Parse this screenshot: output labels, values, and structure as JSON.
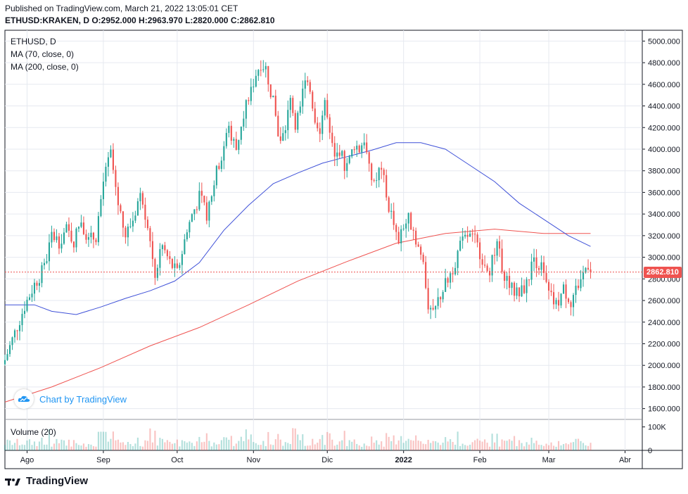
{
  "header": {
    "published": "Published on TradingView.com, March 21, 2022 13:05:01 CET",
    "symbol": "ETHUSD:KRAKEN, D",
    "ohlc": "O:2952.000 H:2963.970 L:2820.000 C:2862.810"
  },
  "legend": {
    "symbol": "ETHUSD, D",
    "ma70": "MA (70, close, 0)",
    "ma200": "MA (200, close, 0)",
    "volume": "Volume (20)"
  },
  "attribution": "Chart by TradingView",
  "footer_brand": "TradingView",
  "last_price_label": "2862.810",
  "colors": {
    "up": "#26a69a",
    "down": "#ef5350",
    "ma70": "#3f51d8",
    "ma200": "#ef5350",
    "grid": "#e6e9f0",
    "accent": "#2196f3"
  },
  "chart_data": {
    "type": "candlestick",
    "ylim": [
      1500,
      5100
    ],
    "y_ticks": [
      "1600.000",
      "1800.000",
      "2000.000",
      "2200.000",
      "2400.000",
      "2600.000",
      "2800.000",
      "3000.000",
      "3200.000",
      "3400.000",
      "3600.000",
      "3800.000",
      "4000.000",
      "4200.000",
      "4400.000",
      "4600.000",
      "4800.000",
      "5000.000"
    ],
    "x_ticks": [
      {
        "label": "Ago",
        "day": 0
      },
      {
        "label": "Sep",
        "day": 31
      },
      {
        "label": "Oct",
        "day": 61
      },
      {
        "label": "Nov",
        "day": 92
      },
      {
        "label": "Dic",
        "day": 122
      },
      {
        "label": "2022",
        "day": 153
      },
      {
        "label": "Feb",
        "day": 184
      },
      {
        "label": "Mar",
        "day": 212
      },
      {
        "label": "Abr",
        "day": 243
      }
    ],
    "volume_ticks": [
      "100K",
      "0"
    ],
    "volume_max": 120000,
    "x_range_days": [
      -9,
      250
    ],
    "last_close": 2862.81,
    "anchors": [
      [
        -9,
        2050
      ],
      [
        -5,
        2300
      ],
      [
        -1,
        2550
      ],
      [
        3,
        2750
      ],
      [
        7,
        2900
      ],
      [
        10,
        3200
      ],
      [
        13,
        3150
      ],
      [
        16,
        3250
      ],
      [
        19,
        3150
      ],
      [
        22,
        3350
      ],
      [
        25,
        3150
      ],
      [
        28,
        3200
      ],
      [
        31,
        3700
      ],
      [
        34,
        3950
      ],
      [
        37,
        3500
      ],
      [
        40,
        3200
      ],
      [
        43,
        3350
      ],
      [
        46,
        3600
      ],
      [
        49,
        3300
      ],
      [
        52,
        2850
      ],
      [
        55,
        3100
      ],
      [
        58,
        2950
      ],
      [
        61,
        2850
      ],
      [
        64,
        3150
      ],
      [
        67,
        3400
      ],
      [
        70,
        3550
      ],
      [
        73,
        3400
      ],
      [
        76,
        3700
      ],
      [
        79,
        3950
      ],
      [
        82,
        4200
      ],
      [
        85,
        4000
      ],
      [
        88,
        4350
      ],
      [
        91,
        4550
      ],
      [
        93,
        4700
      ],
      [
        95,
        4800
      ],
      [
        97,
        4750
      ],
      [
        99,
        4550
      ],
      [
        101,
        4300
      ],
      [
        103,
        4050
      ],
      [
        105,
        4200
      ],
      [
        107,
        4450
      ],
      [
        109,
        4250
      ],
      [
        111,
        4350
      ],
      [
        113,
        4700
      ],
      [
        115,
        4550
      ],
      [
        117,
        4300
      ],
      [
        119,
        4200
      ],
      [
        121,
        4450
      ],
      [
        123,
        4100
      ],
      [
        125,
        3900
      ],
      [
        127,
        4000
      ],
      [
        129,
        3850
      ],
      [
        131,
        3900
      ],
      [
        133,
        4050
      ],
      [
        135,
        4000
      ],
      [
        137,
        4100
      ],
      [
        139,
        3800
      ],
      [
        141,
        3650
      ],
      [
        143,
        3800
      ],
      [
        145,
        3700
      ],
      [
        147,
        3450
      ],
      [
        149,
        3350
      ],
      [
        151,
        3100
      ],
      [
        153,
        3300
      ],
      [
        155,
        3350
      ],
      [
        157,
        3250
      ],
      [
        159,
        3100
      ],
      [
        161,
        2950
      ],
      [
        163,
        2550
      ],
      [
        165,
        2450
      ],
      [
        167,
        2600
      ],
      [
        170,
        2750
      ],
      [
        173,
        2900
      ],
      [
        176,
        3100
      ],
      [
        179,
        3200
      ],
      [
        182,
        3150
      ],
      [
        185,
        3000
      ],
      [
        188,
        2900
      ],
      [
        191,
        3100
      ],
      [
        194,
        2850
      ],
      [
        197,
        2700
      ],
      [
        200,
        2650
      ],
      [
        203,
        2750
      ],
      [
        206,
        3000
      ],
      [
        209,
        2900
      ],
      [
        212,
        2650
      ],
      [
        215,
        2550
      ],
      [
        218,
        2700
      ],
      [
        221,
        2600
      ],
      [
        224,
        2750
      ],
      [
        227,
        2900
      ],
      [
        228,
        2950
      ],
      [
        229,
        2862.81
      ]
    ],
    "ma70": [
      [
        -9,
        2560
      ],
      [
        3,
        2560
      ],
      [
        10,
        2500
      ],
      [
        20,
        2470
      ],
      [
        30,
        2540
      ],
      [
        40,
        2620
      ],
      [
        50,
        2690
      ],
      [
        60,
        2780
      ],
      [
        70,
        2950
      ],
      [
        80,
        3250
      ],
      [
        90,
        3480
      ],
      [
        100,
        3680
      ],
      [
        110,
        3780
      ],
      [
        120,
        3870
      ],
      [
        130,
        3930
      ],
      [
        140,
        3990
      ],
      [
        150,
        4060
      ],
      [
        160,
        4060
      ],
      [
        170,
        4000
      ],
      [
        180,
        3850
      ],
      [
        190,
        3700
      ],
      [
        200,
        3500
      ],
      [
        210,
        3350
      ],
      [
        220,
        3200
      ],
      [
        229,
        3100
      ]
    ],
    "ma200": [
      [
        -9,
        1660
      ],
      [
        10,
        1800
      ],
      [
        30,
        1980
      ],
      [
        50,
        2180
      ],
      [
        70,
        2350
      ],
      [
        90,
        2560
      ],
      [
        110,
        2780
      ],
      [
        130,
        2960
      ],
      [
        150,
        3130
      ],
      [
        170,
        3220
      ],
      [
        190,
        3260
      ],
      [
        210,
        3220
      ],
      [
        229,
        3220
      ]
    ]
  }
}
